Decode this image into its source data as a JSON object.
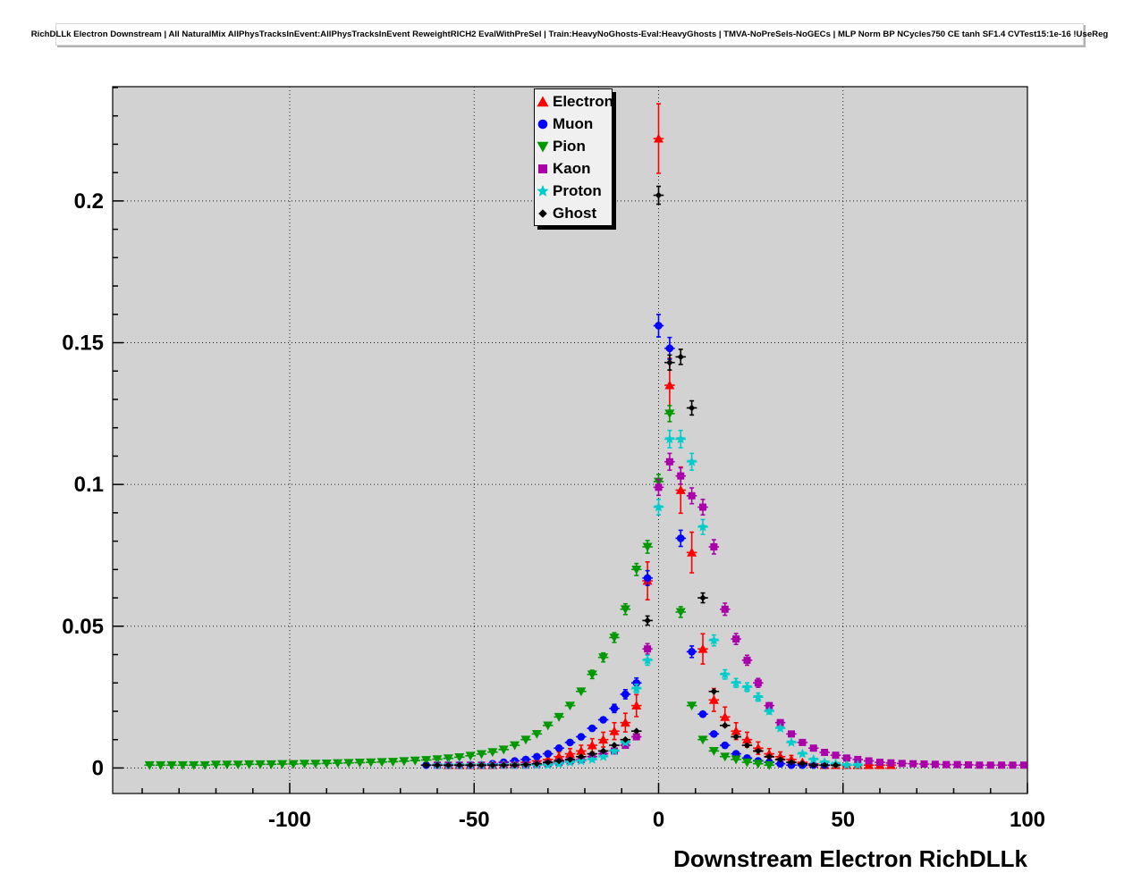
{
  "chart_data": {
    "type": "scatter",
    "title": "RichDLLk Electron Downstream | All NaturalMix AllPhysTracksInEvent:AllPhysTracksInEvent ReweightRICH2 EvalWithPreSel | Train:HeavyNoGhosts-Eval:HeavyGhosts | TMVA-NoPreSels-NoGECs | MLP Norm BP NCycles750 CE tanh SF1.4 CVTest15:1e-16 !UseReg",
    "xlabel": "Downstream Electron RichDLLk",
    "ylabel": "",
    "xlim": [
      -148,
      100
    ],
    "ylim": [
      -0.009,
      0.2403
    ],
    "x_ticks": [
      -100,
      -50,
      0,
      50,
      100
    ],
    "x_tick_labels": [
      "-100",
      "-50",
      "0",
      "50",
      "100"
    ],
    "x_minor_step": 10,
    "y_ticks": [
      0,
      0.05,
      0.1,
      0.15,
      0.2
    ],
    "y_tick_labels": [
      "0",
      "0.05",
      "0.1",
      "0.15",
      "0.2"
    ],
    "y_minor_step": 0.01,
    "grid": "dotted",
    "plot_bg": "#d2d2d2",
    "legend_position": "top-center",
    "bin_half_width": 1.4,
    "series": [
      {
        "name": "Electron",
        "color": "#ff0000",
        "marker": "triangle-up",
        "marker_size": 5.5,
        "err_coef": 0.026,
        "points": [
          [
            -57,
            0.001
          ],
          [
            -54,
            0.001
          ],
          [
            -51,
            0.001
          ],
          [
            -48,
            0.001
          ],
          [
            -45,
            0.001
          ],
          [
            -42,
            0.0012
          ],
          [
            -39,
            0.0015
          ],
          [
            -36,
            0.002
          ],
          [
            -33,
            0.0025
          ],
          [
            -30,
            0.003
          ],
          [
            -27,
            0.004
          ],
          [
            -24,
            0.005
          ],
          [
            -21,
            0.006
          ],
          [
            -18,
            0.008
          ],
          [
            -15,
            0.01
          ],
          [
            -12,
            0.013
          ],
          [
            -9,
            0.016
          ],
          [
            -6,
            0.022
          ],
          [
            -3,
            0.066
          ],
          [
            0,
            0.222
          ],
          [
            3,
            0.135
          ],
          [
            6,
            0.098
          ],
          [
            9,
            0.076
          ],
          [
            12,
            0.042
          ],
          [
            15,
            0.024
          ],
          [
            18,
            0.018
          ],
          [
            21,
            0.013
          ],
          [
            24,
            0.01
          ],
          [
            27,
            0.007
          ],
          [
            30,
            0.005
          ],
          [
            33,
            0.004
          ],
          [
            36,
            0.003
          ],
          [
            39,
            0.002
          ],
          [
            42,
            0.0015
          ],
          [
            45,
            0.001
          ],
          [
            48,
            0.001
          ],
          [
            51,
            0.001
          ],
          [
            54,
            0.001
          ],
          [
            57,
            0.001
          ],
          [
            60,
            0.001
          ],
          [
            63,
            0.001
          ]
        ]
      },
      {
        "name": "Muon",
        "color": "#0000ff",
        "marker": "circle",
        "marker_size": 4.3,
        "err_coef": 0.01,
        "points": [
          [
            -63,
            0.001
          ],
          [
            -60,
            0.001
          ],
          [
            -57,
            0.001
          ],
          [
            -54,
            0.001
          ],
          [
            -51,
            0.001
          ],
          [
            -48,
            0.001
          ],
          [
            -45,
            0.0015
          ],
          [
            -42,
            0.002
          ],
          [
            -39,
            0.0025
          ],
          [
            -36,
            0.003
          ],
          [
            -33,
            0.004
          ],
          [
            -30,
            0.005
          ],
          [
            -27,
            0.007
          ],
          [
            -24,
            0.009
          ],
          [
            -21,
            0.011
          ],
          [
            -18,
            0.014
          ],
          [
            -15,
            0.017
          ],
          [
            -12,
            0.021
          ],
          [
            -9,
            0.026
          ],
          [
            -6,
            0.03
          ],
          [
            -3,
            0.067
          ],
          [
            0,
            0.156
          ],
          [
            3,
            0.148
          ],
          [
            6,
            0.081
          ],
          [
            9,
            0.041
          ],
          [
            12,
            0.019
          ],
          [
            15,
            0.012
          ],
          [
            18,
            0.008
          ],
          [
            21,
            0.005
          ],
          [
            24,
            0.0035
          ],
          [
            27,
            0.0025
          ],
          [
            30,
            0.002
          ],
          [
            33,
            0.0015
          ],
          [
            36,
            0.001
          ],
          [
            39,
            0.001
          ],
          [
            42,
            0.001
          ],
          [
            45,
            0.001
          ]
        ]
      },
      {
        "name": "Pion",
        "color": "#009900",
        "marker": "triangle-down",
        "marker_size": 5.5,
        "err_coef": 0.008,
        "points": [
          [
            -138,
            0.001
          ],
          [
            -135,
            0.001
          ],
          [
            -132,
            0.001
          ],
          [
            -129,
            0.001
          ],
          [
            -126,
            0.001
          ],
          [
            -123,
            0.001
          ],
          [
            -120,
            0.0012
          ],
          [
            -117,
            0.0012
          ],
          [
            -114,
            0.0012
          ],
          [
            -111,
            0.0013
          ],
          [
            -108,
            0.0013
          ],
          [
            -105,
            0.0013
          ],
          [
            -102,
            0.0014
          ],
          [
            -99,
            0.0014
          ],
          [
            -96,
            0.0015
          ],
          [
            -93,
            0.0015
          ],
          [
            -90,
            0.0016
          ],
          [
            -87,
            0.0017
          ],
          [
            -84,
            0.0018
          ],
          [
            -81,
            0.0019
          ],
          [
            -78,
            0.002
          ],
          [
            -75,
            0.0021
          ],
          [
            -72,
            0.0022
          ],
          [
            -69,
            0.0024
          ],
          [
            -66,
            0.0026
          ],
          [
            -63,
            0.0028
          ],
          [
            -60,
            0.0031
          ],
          [
            -57,
            0.0034
          ],
          [
            -54,
            0.0038
          ],
          [
            -51,
            0.0043
          ],
          [
            -48,
            0.0049
          ],
          [
            -45,
            0.0056
          ],
          [
            -42,
            0.0065
          ],
          [
            -39,
            0.008
          ],
          [
            -36,
            0.01
          ],
          [
            -33,
            0.012
          ],
          [
            -30,
            0.015
          ],
          [
            -27,
            0.018
          ],
          [
            -24,
            0.022
          ],
          [
            -21,
            0.027
          ],
          [
            -18,
            0.033
          ],
          [
            -15,
            0.039
          ],
          [
            -12,
            0.046
          ],
          [
            -9,
            0.056
          ],
          [
            -6,
            0.07
          ],
          [
            -3,
            0.078
          ],
          [
            0,
            0.101
          ],
          [
            3,
            0.125
          ],
          [
            6,
            0.055
          ],
          [
            9,
            0.022
          ],
          [
            12,
            0.01
          ],
          [
            15,
            0.006
          ],
          [
            18,
            0.004
          ],
          [
            21,
            0.003
          ],
          [
            24,
            0.002
          ],
          [
            27,
            0.0015
          ],
          [
            30,
            0.001
          ]
        ]
      },
      {
        "name": "Kaon",
        "color": "#aa00aa",
        "marker": "square",
        "marker_size": 4,
        "err_coef": 0.009,
        "points": [
          [
            -60,
            0.001
          ],
          [
            -57,
            0.001
          ],
          [
            -54,
            0.001
          ],
          [
            -51,
            0.001
          ],
          [
            -48,
            0.001
          ],
          [
            -45,
            0.001
          ],
          [
            -42,
            0.001
          ],
          [
            -39,
            0.001
          ],
          [
            -36,
            0.001
          ],
          [
            -33,
            0.0012
          ],
          [
            -30,
            0.0015
          ],
          [
            -27,
            0.002
          ],
          [
            -24,
            0.0025
          ],
          [
            -21,
            0.003
          ],
          [
            -18,
            0.004
          ],
          [
            -15,
            0.005
          ],
          [
            -12,
            0.006
          ],
          [
            -9,
            0.008
          ],
          [
            -6,
            0.011
          ],
          [
            -3,
            0.042
          ],
          [
            0,
            0.099
          ],
          [
            3,
            0.108
          ],
          [
            6,
            0.103
          ],
          [
            9,
            0.096
          ],
          [
            12,
            0.092
          ],
          [
            15,
            0.078
          ],
          [
            18,
            0.056
          ],
          [
            21,
            0.0455
          ],
          [
            24,
            0.038
          ],
          [
            27,
            0.03
          ],
          [
            30,
            0.022
          ],
          [
            33,
            0.016
          ],
          [
            36,
            0.012
          ],
          [
            39,
            0.009
          ],
          [
            42,
            0.007
          ],
          [
            45,
            0.0055
          ],
          [
            48,
            0.0045
          ],
          [
            51,
            0.0035
          ],
          [
            54,
            0.003
          ],
          [
            57,
            0.0025
          ],
          [
            60,
            0.002
          ],
          [
            63,
            0.0018
          ],
          [
            66,
            0.0016
          ],
          [
            69,
            0.0015
          ],
          [
            72,
            0.0014
          ],
          [
            75,
            0.0013
          ],
          [
            78,
            0.0012
          ],
          [
            81,
            0.0012
          ],
          [
            84,
            0.0011
          ],
          [
            87,
            0.001
          ],
          [
            90,
            0.001
          ],
          [
            93,
            0.001
          ],
          [
            96,
            0.001
          ],
          [
            99,
            0.001
          ]
        ]
      },
      {
        "name": "Proton",
        "color": "#00cccc",
        "marker": "star",
        "marker_size": 6,
        "err_coef": 0.009,
        "points": [
          [
            -60,
            0.001
          ],
          [
            -57,
            0.001
          ],
          [
            -54,
            0.001
          ],
          [
            -51,
            0.001
          ],
          [
            -48,
            0.001
          ],
          [
            -45,
            0.001
          ],
          [
            -42,
            0.001
          ],
          [
            -39,
            0.001
          ],
          [
            -36,
            0.001
          ],
          [
            -33,
            0.001
          ],
          [
            -30,
            0.001
          ],
          [
            -27,
            0.0015
          ],
          [
            -24,
            0.002
          ],
          [
            -21,
            0.0025
          ],
          [
            -18,
            0.003
          ],
          [
            -15,
            0.004
          ],
          [
            -12,
            0.006
          ],
          [
            -9,
            0.009
          ],
          [
            -6,
            0.028
          ],
          [
            -3,
            0.038
          ],
          [
            0,
            0.092
          ],
          [
            3,
            0.116
          ],
          [
            6,
            0.116
          ],
          [
            9,
            0.108
          ],
          [
            12,
            0.085
          ],
          [
            15,
            0.045
          ],
          [
            18,
            0.033
          ],
          [
            21,
            0.03
          ],
          [
            24,
            0.0285
          ],
          [
            27,
            0.025
          ],
          [
            30,
            0.02
          ],
          [
            33,
            0.014
          ],
          [
            36,
            0.009
          ],
          [
            39,
            0.005
          ],
          [
            42,
            0.003
          ],
          [
            45,
            0.002
          ],
          [
            48,
            0.0015
          ],
          [
            51,
            0.001
          ],
          [
            54,
            0.001
          ]
        ]
      },
      {
        "name": "Ghost",
        "color": "#000000",
        "marker": "diamond",
        "marker_size": 3.8,
        "err_coef": 0.007,
        "points": [
          [
            -63,
            0.001
          ],
          [
            -60,
            0.001
          ],
          [
            -57,
            0.001
          ],
          [
            -54,
            0.001
          ],
          [
            -51,
            0.001
          ],
          [
            -48,
            0.001
          ],
          [
            -45,
            0.001
          ],
          [
            -42,
            0.001
          ],
          [
            -39,
            0.001
          ],
          [
            -36,
            0.0012
          ],
          [
            -33,
            0.0015
          ],
          [
            -30,
            0.002
          ],
          [
            -27,
            0.0025
          ],
          [
            -24,
            0.003
          ],
          [
            -21,
            0.004
          ],
          [
            -18,
            0.005
          ],
          [
            -15,
            0.006
          ],
          [
            -12,
            0.008
          ],
          [
            -9,
            0.01
          ],
          [
            -6,
            0.013
          ],
          [
            -3,
            0.052
          ],
          [
            0,
            0.202
          ],
          [
            3,
            0.143
          ],
          [
            6,
            0.145
          ],
          [
            9,
            0.127
          ],
          [
            12,
            0.06
          ],
          [
            15,
            0.027
          ],
          [
            18,
            0.015
          ],
          [
            21,
            0.011
          ],
          [
            24,
            0.008
          ],
          [
            27,
            0.006
          ],
          [
            30,
            0.004
          ],
          [
            33,
            0.003
          ],
          [
            36,
            0.002
          ],
          [
            39,
            0.0015
          ],
          [
            42,
            0.001
          ],
          [
            45,
            0.001
          ],
          [
            48,
            0.001
          ]
        ]
      }
    ]
  }
}
